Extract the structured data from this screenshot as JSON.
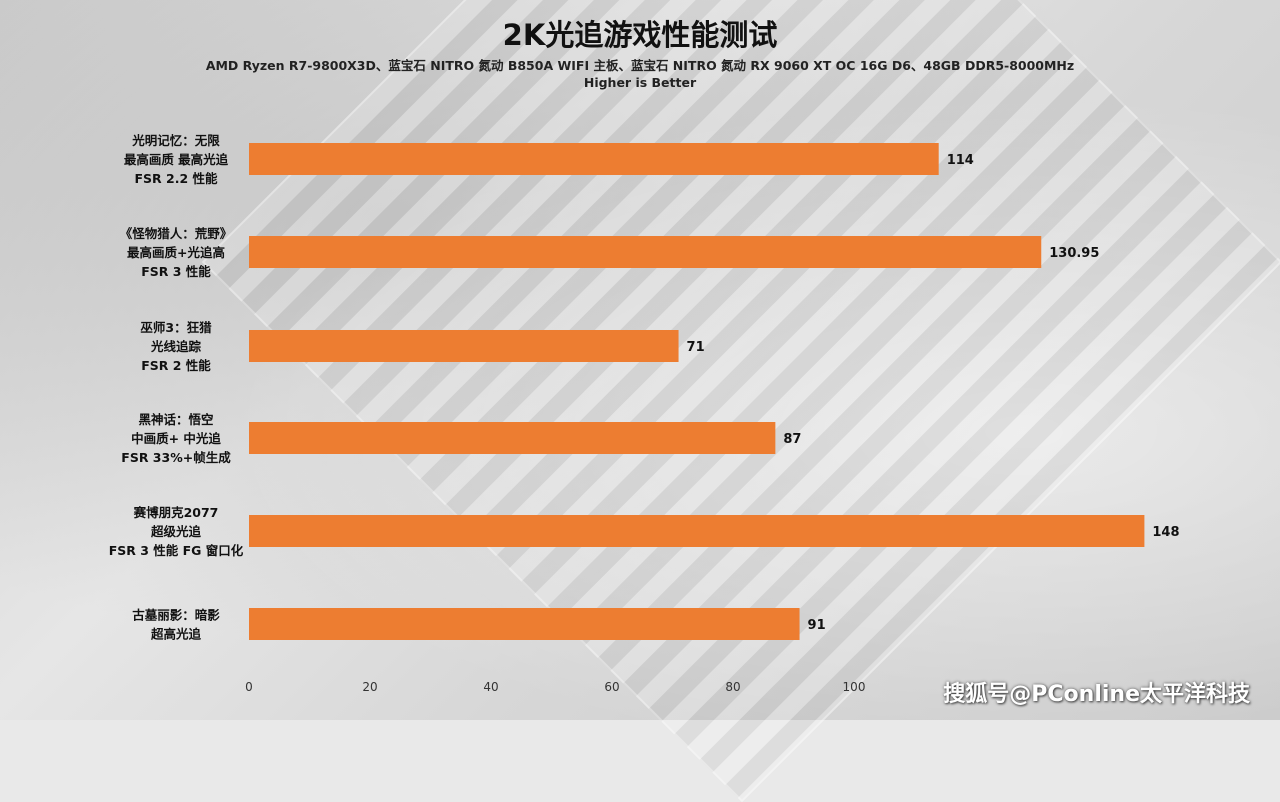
{
  "chart_data": {
    "type": "bar",
    "orientation": "horizontal",
    "title": "2K光追游戏性能测试",
    "subtitle": "AMD Ryzen R7-9800X3D、蓝宝石 NITRO 氮动 B850A WIFI 主板、蓝宝石 NITRO 氮动 RX 9060 XT OC 16G D6、48GB DDR5-8000MHz",
    "note": "Higher is Better",
    "categories": [
      [
        "光明记忆：无限",
        "最高画质 最高光追",
        "FSR 2.2 性能"
      ],
      [
        "《怪物猎人：荒野》",
        "最高画质+光追高",
        "FSR 3 性能"
      ],
      [
        "巫师3：狂猎",
        "光线追踪",
        "FSR 2 性能"
      ],
      [
        "黑神话：悟空",
        "中画质+ 中光追",
        "FSR 33%+帧生成"
      ],
      [
        "赛博朋克2077",
        "超级光追",
        "FSR 3 性能 FG 窗口化"
      ],
      [
        "古墓丽影：暗影",
        "超高光追"
      ]
    ],
    "values": [
      114,
      130.95,
      71,
      87,
      148,
      91
    ],
    "value_labels": [
      "114",
      "130.95",
      "71",
      "87",
      "148",
      "91"
    ],
    "x_ticks": [
      "0",
      "20",
      "40",
      "60",
      "80",
      "100"
    ],
    "xlim": [
      0,
      148
    ],
    "bar_color": "#ED7D31",
    "grid": false,
    "legend": "none"
  },
  "watermark": "搜狐号@PConline太平洋科技"
}
